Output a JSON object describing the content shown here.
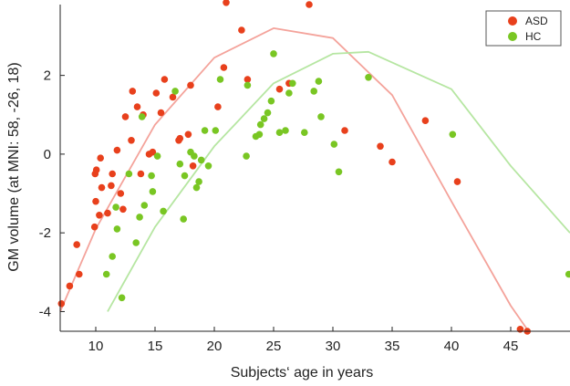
{
  "chart_data": {
    "type": "scatter",
    "title": "",
    "xlabel": "Subjects‘ age in years",
    "ylabel": "GM volume (at MNI: 58, -26, 18)",
    "xlim": [
      7,
      50
    ],
    "ylim": [
      -4.5,
      3.8
    ],
    "x_ticks": [
      10,
      15,
      20,
      25,
      30,
      35,
      40,
      45
    ],
    "y_ticks": [
      -4,
      -2,
      0,
      2
    ],
    "grid": false,
    "legend_position": "top-right",
    "series": [
      {
        "name": "ASD",
        "color": "#e8401c",
        "points": [
          [
            7.1,
            -3.8
          ],
          [
            7.8,
            -3.35
          ],
          [
            8.4,
            -2.3
          ],
          [
            8.6,
            -3.05
          ],
          [
            9.9,
            -1.85
          ],
          [
            9.95,
            -0.5
          ],
          [
            10.05,
            -0.4
          ],
          [
            10.0,
            -1.2
          ],
          [
            10.3,
            -1.55
          ],
          [
            10.5,
            -0.85
          ],
          [
            10.4,
            -0.1
          ],
          [
            11.0,
            -1.5
          ],
          [
            11.3,
            -0.8
          ],
          [
            11.4,
            -0.5
          ],
          [
            11.8,
            0.1
          ],
          [
            12.1,
            -1.0
          ],
          [
            12.3,
            -1.4
          ],
          [
            12.5,
            0.95
          ],
          [
            13.0,
            0.35
          ],
          [
            13.1,
            1.6
          ],
          [
            13.5,
            1.2
          ],
          [
            13.8,
            -0.5
          ],
          [
            14.0,
            1.0
          ],
          [
            14.5,
            0.0
          ],
          [
            14.8,
            0.05
          ],
          [
            15.1,
            1.55
          ],
          [
            15.5,
            1.05
          ],
          [
            15.8,
            1.9
          ],
          [
            16.5,
            1.45
          ],
          [
            17.0,
            0.35
          ],
          [
            17.1,
            0.4
          ],
          [
            17.8,
            0.5
          ],
          [
            18.0,
            1.75
          ],
          [
            18.2,
            -0.3
          ],
          [
            20.3,
            1.2
          ],
          [
            20.8,
            2.2
          ],
          [
            21.0,
            3.85
          ],
          [
            22.3,
            3.15
          ],
          [
            22.8,
            1.9
          ],
          [
            25.5,
            1.65
          ],
          [
            26.3,
            1.8
          ],
          [
            28.0,
            3.8
          ],
          [
            31.0,
            0.6
          ],
          [
            34.0,
            0.2
          ],
          [
            35.0,
            -0.2
          ],
          [
            37.8,
            0.85
          ],
          [
            40.5,
            -0.7
          ],
          [
            45.8,
            -4.45
          ],
          [
            46.4,
            -4.5
          ]
        ]
      },
      {
        "name": "HC",
        "color": "#79c623",
        "points": [
          [
            10.9,
            -3.05
          ],
          [
            11.4,
            -2.6
          ],
          [
            11.7,
            -1.35
          ],
          [
            11.8,
            -1.9
          ],
          [
            12.2,
            -3.65
          ],
          [
            12.8,
            -0.5
          ],
          [
            13.4,
            -2.25
          ],
          [
            13.7,
            -1.6
          ],
          [
            13.9,
            0.95
          ],
          [
            14.1,
            -1.3
          ],
          [
            14.7,
            -0.55
          ],
          [
            14.8,
            -0.95
          ],
          [
            15.2,
            -0.05
          ],
          [
            15.7,
            -1.45
          ],
          [
            16.7,
            1.6
          ],
          [
            17.1,
            -0.25
          ],
          [
            17.4,
            -1.65
          ],
          [
            17.5,
            -0.55
          ],
          [
            18.0,
            0.05
          ],
          [
            18.3,
            -0.05
          ],
          [
            18.5,
            -0.85
          ],
          [
            18.7,
            -0.7
          ],
          [
            18.9,
            -0.15
          ],
          [
            19.2,
            0.6
          ],
          [
            19.5,
            -0.3
          ],
          [
            20.1,
            0.6
          ],
          [
            20.5,
            1.9
          ],
          [
            22.7,
            -0.05
          ],
          [
            22.8,
            1.75
          ],
          [
            23.5,
            0.45
          ],
          [
            23.8,
            0.5
          ],
          [
            23.9,
            0.75
          ],
          [
            24.2,
            0.9
          ],
          [
            24.5,
            1.05
          ],
          [
            24.8,
            1.35
          ],
          [
            25.0,
            2.55
          ],
          [
            25.5,
            0.55
          ],
          [
            26.0,
            0.6
          ],
          [
            26.3,
            1.55
          ],
          [
            26.6,
            1.8
          ],
          [
            27.6,
            0.55
          ],
          [
            28.4,
            1.6
          ],
          [
            28.8,
            1.85
          ],
          [
            29.0,
            0.95
          ],
          [
            30.1,
            0.25
          ],
          [
            30.5,
            -0.45
          ],
          [
            33.0,
            1.95
          ],
          [
            40.1,
            0.5
          ],
          [
            49.9,
            -3.05
          ]
        ]
      }
    ],
    "fits": [
      {
        "name": "ASD fit",
        "color": "#f4a39b",
        "points": [
          [
            7,
            -4.0
          ],
          [
            10,
            -1.9
          ],
          [
            15,
            0.75
          ],
          [
            20,
            2.45
          ],
          [
            25,
            3.2
          ],
          [
            30,
            2.95
          ],
          [
            35,
            1.5
          ],
          [
            40,
            -1.2
          ],
          [
            45,
            -3.85
          ],
          [
            46.5,
            -4.5
          ]
        ]
      },
      {
        "name": "HC fit",
        "color": "#b6e6a2",
        "points": [
          [
            11,
            -4.0
          ],
          [
            15,
            -1.85
          ],
          [
            20,
            0.2
          ],
          [
            25,
            1.8
          ],
          [
            30,
            2.55
          ],
          [
            33,
            2.6
          ],
          [
            40,
            1.65
          ],
          [
            45,
            -0.3
          ],
          [
            50,
            -2.0
          ]
        ]
      }
    ]
  }
}
